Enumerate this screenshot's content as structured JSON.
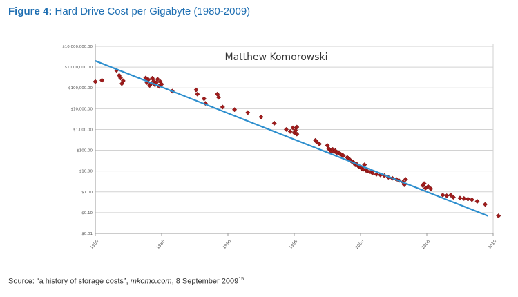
{
  "figure": {
    "label": "Figure 4:",
    "title": "Hard Drive Cost per Gigabyte (1980-2009)"
  },
  "source": {
    "prefix": "Source: “a history of storage costs”, ",
    "site": "mkomo.com",
    "suffix": ", 8 September 2009",
    "footnote": "15"
  },
  "colors": {
    "title": "#1f6fb2",
    "trend": "#2e8fce",
    "marker": "#a01c1c",
    "grid": "#d2d2d2"
  },
  "chart_data": {
    "type": "scatter",
    "title": "Matthew Komorowski",
    "xlabel": "",
    "ylabel": "",
    "x_ticks": [
      "1980",
      "1985",
      "1990",
      "1995",
      "2000",
      "2005",
      "2010"
    ],
    "y_ticks": [
      "$0.01",
      "$0.10",
      "$1.00",
      "$10.00",
      "$100.00",
      "$1,000.00",
      "$10,000.00",
      "$100,000.00",
      "$1,000,000.00",
      "$10,000,000.00"
    ],
    "xlim": [
      1980,
      2010
    ],
    "ylim": [
      0.01,
      10000000
    ],
    "y_scale": "log",
    "grid": true,
    "legend": "none",
    "trendline": {
      "x": [
        1980,
        2009.6
      ],
      "y": [
        2000000,
        0.07
      ]
    },
    "points": [
      [
        1980,
        200000
      ],
      [
        1980.5,
        230000
      ],
      [
        1981.6,
        700000
      ],
      [
        1981.8,
        400000
      ],
      [
        1981.9,
        300000
      ],
      [
        1982,
        160000
      ],
      [
        1982.1,
        220000
      ],
      [
        1983.8,
        300000
      ],
      [
        1983.9,
        180000
      ],
      [
        1984,
        250000
      ],
      [
        1984.1,
        130000
      ],
      [
        1984.2,
        160000
      ],
      [
        1984.3,
        290000
      ],
      [
        1984.4,
        210000
      ],
      [
        1984.5,
        140000
      ],
      [
        1984.6,
        180000
      ],
      [
        1984.7,
        260000
      ],
      [
        1984.8,
        120000
      ],
      [
        1984.9,
        200000
      ],
      [
        1985,
        150000
      ],
      [
        1985.8,
        70000
      ],
      [
        1987.6,
        80000
      ],
      [
        1987.7,
        50000
      ],
      [
        1988.2,
        30000
      ],
      [
        1988.3,
        18000
      ],
      [
        1989.2,
        50000
      ],
      [
        1989.3,
        35000
      ],
      [
        1989.6,
        12000
      ],
      [
        1990.5,
        9000
      ],
      [
        1991.5,
        6500
      ],
      [
        1992.5,
        4000
      ],
      [
        1993.5,
        2000
      ],
      [
        1994.4,
        1000
      ],
      [
        1994.7,
        800
      ],
      [
        1994.9,
        1200
      ],
      [
        1995,
        700
      ],
      [
        1995.1,
        900
      ],
      [
        1995.2,
        600
      ],
      [
        1995.2,
        1300
      ],
      [
        1996.6,
        300
      ],
      [
        1996.7,
        250
      ],
      [
        1996.9,
        200
      ],
      [
        1997.5,
        170
      ],
      [
        1997.6,
        120
      ],
      [
        1997.7,
        100
      ],
      [
        1997.8,
        90
      ],
      [
        1997.9,
        110
      ],
      [
        1998,
        85
      ],
      [
        1998.1,
        95
      ],
      [
        1998.2,
        75
      ],
      [
        1998.3,
        80
      ],
      [
        1998.4,
        70
      ],
      [
        1998.5,
        65
      ],
      [
        1998.6,
        60
      ],
      [
        1998.7,
        55
      ],
      [
        1999,
        45
      ],
      [
        1999.1,
        40
      ],
      [
        1999.2,
        35
      ],
      [
        1999.3,
        30
      ],
      [
        1999.4,
        28
      ],
      [
        1999.5,
        25
      ],
      [
        1999.6,
        20
      ],
      [
        1999.7,
        22
      ],
      [
        1999.8,
        18
      ],
      [
        1999.9,
        16
      ],
      [
        2000,
        15
      ],
      [
        2000.1,
        13
      ],
      [
        2000.2,
        12
      ],
      [
        2000.3,
        20
      ],
      [
        2000.4,
        11
      ],
      [
        2000.5,
        10
      ],
      [
        2000.7,
        9
      ],
      [
        2000.9,
        8
      ],
      [
        2001.2,
        7
      ],
      [
        2001.5,
        6.5
      ],
      [
        2001.8,
        6
      ],
      [
        2002.1,
        5
      ],
      [
        2002.4,
        4.5
      ],
      [
        2002.7,
        4
      ],
      [
        2002.9,
        3.5
      ],
      [
        2003.2,
        3
      ],
      [
        2003.3,
        2.2
      ],
      [
        2003.4,
        4
      ],
      [
        2004.7,
        2
      ],
      [
        2004.8,
        2.5
      ],
      [
        2004.9,
        1.5
      ],
      [
        2005.1,
        1.8
      ],
      [
        2005.3,
        1.4
      ],
      [
        2006.2,
        0.7
      ],
      [
        2006.5,
        0.65
      ],
      [
        2006.8,
        0.7
      ],
      [
        2007,
        0.55
      ],
      [
        2007.5,
        0.5
      ],
      [
        2007.8,
        0.48
      ],
      [
        2008.1,
        0.45
      ],
      [
        2008.4,
        0.42
      ],
      [
        2008.8,
        0.35
      ],
      [
        2009.4,
        0.25
      ],
      [
        2010.4,
        0.07
      ]
    ]
  }
}
